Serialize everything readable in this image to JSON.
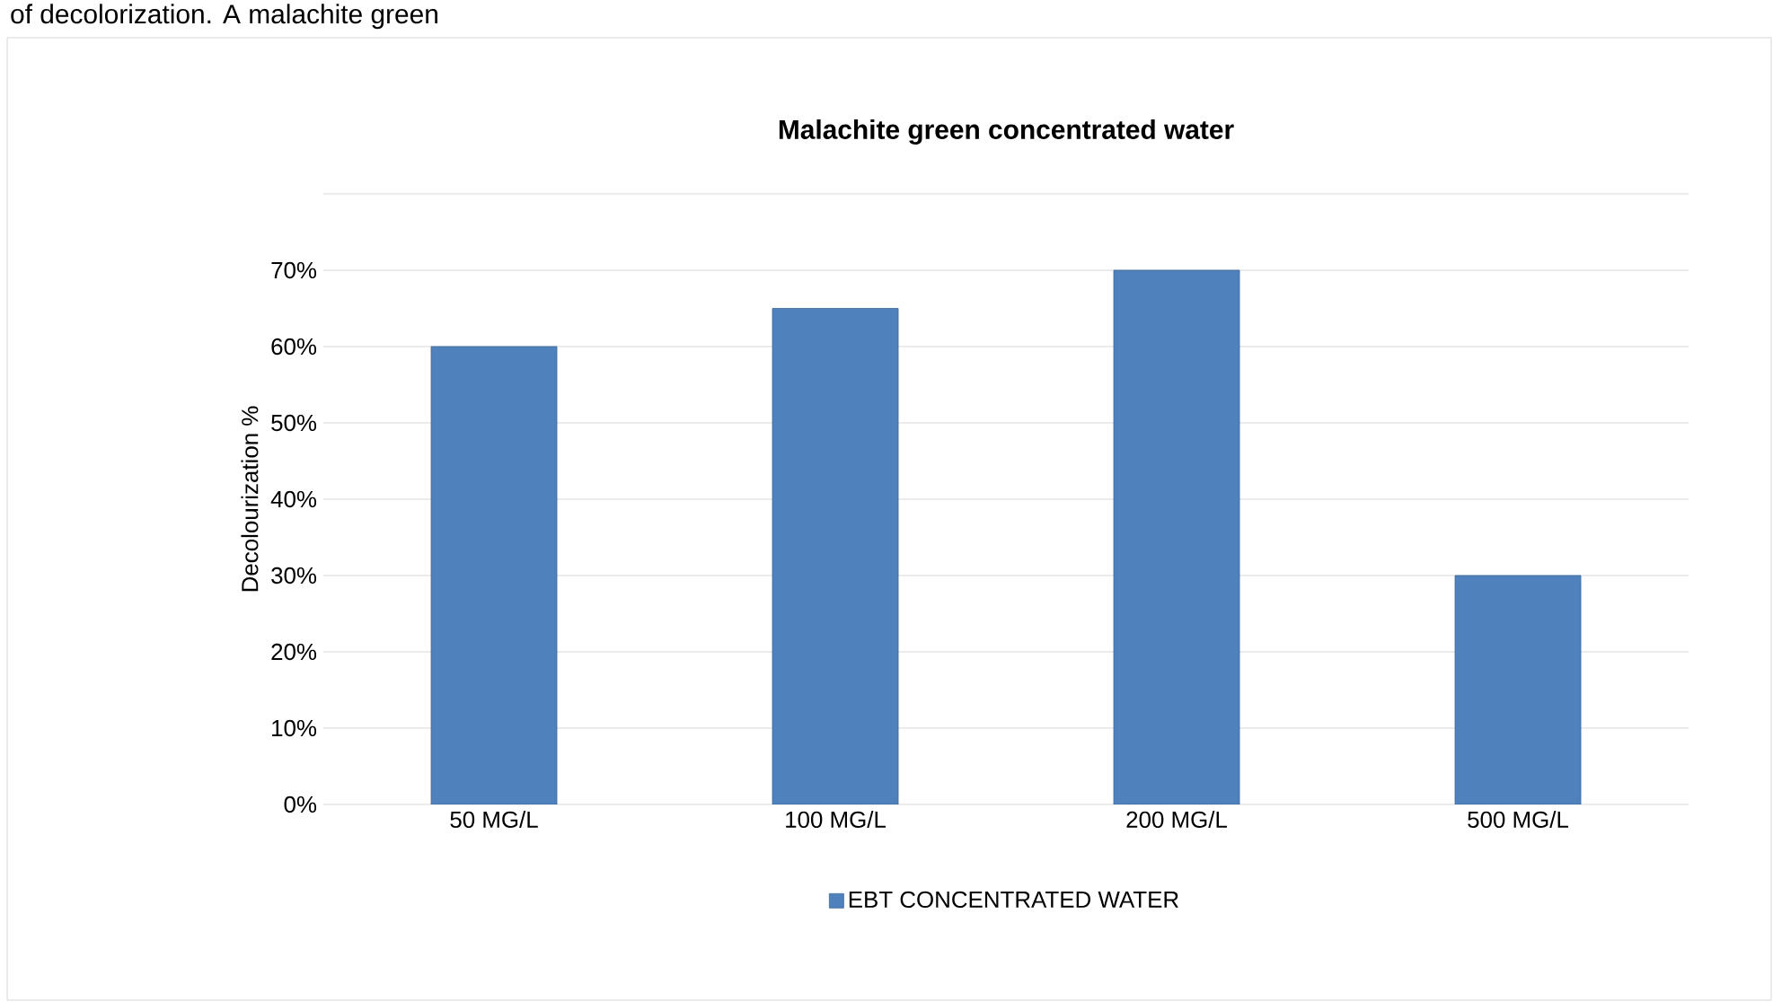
{
  "chart_data": {
    "type": "bar",
    "title": "Malachite green concentrated water",
    "ylabel": "Decolourization %",
    "categories": [
      "50 MG/L",
      "100 MG/L",
      "200 MG/L",
      "500 MG/L"
    ],
    "series": [
      {
        "name": "EBT CONCENTRATED WATER",
        "color": "#4f81bd",
        "values": [
          60,
          65,
          70,
          30
        ]
      }
    ],
    "ylim": [
      0,
      80
    ],
    "yticks": [
      {
        "value": 0,
        "label": "0%"
      },
      {
        "value": 10,
        "label": "10%"
      },
      {
        "value": 20,
        "label": "20%"
      },
      {
        "value": 30,
        "label": "30%"
      },
      {
        "value": 40,
        "label": "40%"
      },
      {
        "value": 50,
        "label": "50%"
      },
      {
        "value": 60,
        "label": "60%"
      },
      {
        "value": 70,
        "label": "70%"
      },
      {
        "value": 80,
        "label": null
      }
    ],
    "grid": "y",
    "legend": "bottom",
    "annotations": [
      "of decolorization. A malachite green"
    ]
  }
}
